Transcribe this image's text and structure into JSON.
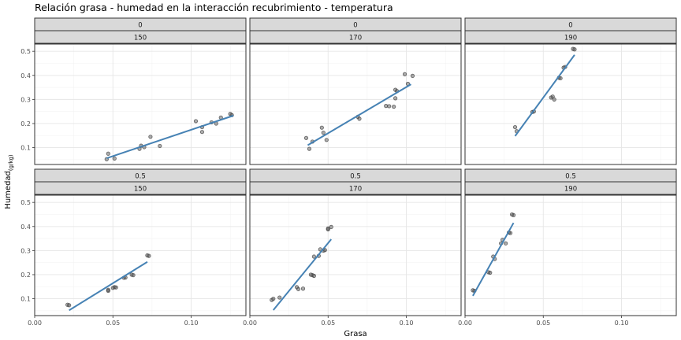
{
  "chart_data": {
    "type": "scatter",
    "title": "Relación grasa - humedad en la interacción recubrimiento - temperatura",
    "xlabel": "Grasa",
    "ylabel_main": "Humedad",
    "ylabel_sub": "(g/kg)",
    "xlim": [
      0.0,
      0.135
    ],
    "ylim": [
      0.03,
      0.53
    ],
    "x_ticks": [
      0.0,
      0.05,
      0.1
    ],
    "x_tick_labels": [
      "0.00",
      "0.05",
      "0.10"
    ],
    "y_ticks": [
      0.1,
      0.2,
      0.3,
      0.4,
      0.5
    ],
    "y_tick_labels": [
      "0.1",
      "0.2",
      "0.3",
      "0.4",
      "0.5"
    ],
    "grid": true,
    "point_color": "#444444",
    "line_color": "#4682b4",
    "panels": [
      {
        "strip_top": "0",
        "strip_bottom": "150",
        "points": [
          [
            0.046,
            0.052
          ],
          [
            0.047,
            0.075
          ],
          [
            0.051,
            0.055
          ],
          [
            0.067,
            0.095
          ],
          [
            0.068,
            0.108
          ],
          [
            0.07,
            0.102
          ],
          [
            0.074,
            0.145
          ],
          [
            0.08,
            0.107
          ],
          [
            0.103,
            0.21
          ],
          [
            0.107,
            0.165
          ],
          [
            0.107,
            0.185
          ],
          [
            0.113,
            0.205
          ],
          [
            0.116,
            0.2
          ],
          [
            0.119,
            0.225
          ],
          [
            0.125,
            0.24
          ],
          [
            0.126,
            0.235
          ]
        ],
        "fit": [
          [
            0.046,
            0.056
          ],
          [
            0.127,
            0.233
          ]
        ]
      },
      {
        "strip_top": "0",
        "strip_bottom": "170",
        "points": [
          [
            0.036,
            0.14
          ],
          [
            0.038,
            0.095
          ],
          [
            0.04,
            0.125
          ],
          [
            0.046,
            0.183
          ],
          [
            0.047,
            0.162
          ],
          [
            0.049,
            0.132
          ],
          [
            0.069,
            0.228
          ],
          [
            0.07,
            0.22
          ],
          [
            0.087,
            0.273
          ],
          [
            0.089,
            0.272
          ],
          [
            0.092,
            0.27
          ],
          [
            0.093,
            0.305
          ],
          [
            0.093,
            0.34
          ],
          [
            0.094,
            0.335
          ],
          [
            0.099,
            0.405
          ],
          [
            0.101,
            0.365
          ],
          [
            0.104,
            0.398
          ]
        ],
        "fit": [
          [
            0.037,
            0.11
          ],
          [
            0.103,
            0.363
          ]
        ]
      },
      {
        "strip_top": "0",
        "strip_bottom": "190",
        "points": [
          [
            0.032,
            0.185
          ],
          [
            0.033,
            0.168
          ],
          [
            0.043,
            0.248
          ],
          [
            0.044,
            0.25
          ],
          [
            0.055,
            0.308
          ],
          [
            0.056,
            0.312
          ],
          [
            0.057,
            0.3
          ],
          [
            0.06,
            0.39
          ],
          [
            0.061,
            0.388
          ],
          [
            0.063,
            0.432
          ],
          [
            0.064,
            0.435
          ],
          [
            0.069,
            0.51
          ],
          [
            0.07,
            0.508
          ]
        ],
        "fit": [
          [
            0.032,
            0.148
          ],
          [
            0.07,
            0.485
          ]
        ]
      },
      {
        "strip_top": "0.5",
        "strip_bottom": "150",
        "points": [
          [
            0.021,
            0.075
          ],
          [
            0.022,
            0.073
          ],
          [
            0.047,
            0.133
          ],
          [
            0.047,
            0.137
          ],
          [
            0.05,
            0.145
          ],
          [
            0.051,
            0.148
          ],
          [
            0.052,
            0.147
          ],
          [
            0.057,
            0.187
          ],
          [
            0.058,
            0.188
          ],
          [
            0.062,
            0.2
          ],
          [
            0.063,
            0.198
          ],
          [
            0.072,
            0.28
          ],
          [
            0.073,
            0.278
          ]
        ],
        "fit": [
          [
            0.022,
            0.052
          ],
          [
            0.072,
            0.253
          ]
        ]
      },
      {
        "strip_top": "0.5",
        "strip_bottom": "170",
        "points": [
          [
            0.014,
            0.095
          ],
          [
            0.015,
            0.1
          ],
          [
            0.019,
            0.105
          ],
          [
            0.03,
            0.148
          ],
          [
            0.031,
            0.14
          ],
          [
            0.034,
            0.142
          ],
          [
            0.039,
            0.2
          ],
          [
            0.04,
            0.198
          ],
          [
            0.041,
            0.195
          ],
          [
            0.041,
            0.275
          ],
          [
            0.044,
            0.278
          ],
          [
            0.045,
            0.305
          ],
          [
            0.047,
            0.3
          ],
          [
            0.048,
            0.302
          ],
          [
            0.05,
            0.392
          ],
          [
            0.05,
            0.388
          ],
          [
            0.052,
            0.398
          ]
        ],
        "fit": [
          [
            0.015,
            0.053
          ],
          [
            0.052,
            0.347
          ]
        ]
      },
      {
        "strip_top": "0.5",
        "strip_bottom": "190",
        "points": [
          [
            0.005,
            0.135
          ],
          [
            0.006,
            0.133
          ],
          [
            0.015,
            0.21
          ],
          [
            0.016,
            0.208
          ],
          [
            0.018,
            0.275
          ],
          [
            0.019,
            0.265
          ],
          [
            0.023,
            0.33
          ],
          [
            0.024,
            0.345
          ],
          [
            0.026,
            0.33
          ],
          [
            0.028,
            0.375
          ],
          [
            0.029,
            0.373
          ],
          [
            0.03,
            0.45
          ],
          [
            0.031,
            0.447
          ]
        ],
        "fit": [
          [
            0.005,
            0.112
          ],
          [
            0.031,
            0.415
          ]
        ]
      }
    ]
  }
}
